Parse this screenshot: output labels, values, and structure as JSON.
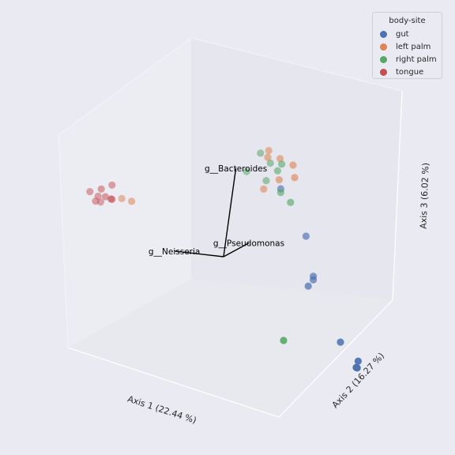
{
  "chart_data": {
    "type": "scatter",
    "projection": "3d",
    "axes": {
      "x": "Axis 1 (22.44 %)",
      "y": "Axis 2 (16.27 %)",
      "z": "Axis 3 (6.02 %)"
    },
    "grid": false,
    "legend": {
      "title": "body-site",
      "placement": "top-right",
      "entries": [
        {
          "label": "gut",
          "color": "#4c72b0"
        },
        {
          "label": "left palm",
          "color": "#dd8452"
        },
        {
          "label": "right palm",
          "color": "#55a868"
        },
        {
          "label": "tongue",
          "color": "#c44e52"
        }
      ]
    },
    "series": [
      {
        "name": "gut",
        "points": [
          {
            "x": 0.12,
            "y": 0.05,
            "z": 0.23
          },
          {
            "x": 0.17,
            "y": 0.08,
            "z": 0.12
          },
          {
            "x": 0.18,
            "y": 0.1,
            "z": 0.02
          },
          {
            "x": 0.18,
            "y": 0.1,
            "z": 0.01
          },
          {
            "x": 0.16,
            "y": 0.12,
            "z": 0.0
          },
          {
            "x": 0.2,
            "y": 0.22,
            "z": -0.1
          },
          {
            "x": 0.22,
            "y": 0.28,
            "z": -0.12
          },
          {
            "x": 0.21,
            "y": 0.3,
            "z": -0.13
          },
          {
            "x": 0.2,
            "y": 0.32,
            "z": -0.12
          }
        ]
      },
      {
        "name": "left palm",
        "points": [
          {
            "x": 0.1,
            "y": 0.02,
            "z": 0.3
          },
          {
            "x": 0.11,
            "y": 0.0,
            "z": 0.31
          },
          {
            "x": 0.13,
            "y": 0.02,
            "z": 0.3
          },
          {
            "x": 0.12,
            "y": 0.04,
            "z": 0.25
          },
          {
            "x": 0.15,
            "y": 0.05,
            "z": 0.3
          },
          {
            "x": 0.15,
            "y": 0.06,
            "z": 0.27
          },
          {
            "x": 0.09,
            "y": 0.02,
            "z": 0.21
          },
          {
            "x": -0.24,
            "y": -0.02,
            "z": 0.12
          },
          {
            "x": -0.22,
            "y": -0.01,
            "z": 0.12
          }
        ]
      },
      {
        "name": "right palm",
        "points": [
          {
            "x": 0.09,
            "y": 0.0,
            "z": 0.3
          },
          {
            "x": 0.11,
            "y": 0.01,
            "z": 0.28
          },
          {
            "x": 0.12,
            "y": 0.03,
            "z": 0.27
          },
          {
            "x": 0.13,
            "y": 0.03,
            "z": 0.29
          },
          {
            "x": 0.06,
            "y": -0.01,
            "z": 0.24
          },
          {
            "x": 0.1,
            "y": 0.01,
            "z": 0.23
          },
          {
            "x": 0.12,
            "y": 0.05,
            "z": 0.22
          },
          {
            "x": 0.14,
            "y": 0.06,
            "z": 0.2
          },
          {
            "x": 0.05,
            "y": 0.25,
            "z": -0.1
          }
        ]
      },
      {
        "name": "tongue",
        "points": [
          {
            "x": -0.26,
            "y": -0.03,
            "z": 0.11
          },
          {
            "x": -0.28,
            "y": -0.02,
            "z": 0.12
          },
          {
            "x": -0.29,
            "y": -0.04,
            "z": 0.11
          },
          {
            "x": -0.3,
            "y": -0.03,
            "z": 0.1
          },
          {
            "x": -0.27,
            "y": -0.01,
            "z": 0.12
          },
          {
            "x": -0.28,
            "y": -0.05,
            "z": 0.09
          },
          {
            "x": -0.29,
            "y": -0.02,
            "z": 0.14
          },
          {
            "x": -0.26,
            "y": -0.03,
            "z": 0.15
          },
          {
            "x": -0.31,
            "y": -0.04,
            "z": 0.12
          }
        ]
      }
    ],
    "biplot_vectors": [
      {
        "label": "g__Bacteroides",
        "x": 0.03,
        "y": 0.0,
        "z": 0.25
      },
      {
        "label": "g__Pseudomonas",
        "x": 0.05,
        "y": 0.03,
        "z": 0.06
      },
      {
        "label": "g__Neisseria",
        "x": -0.12,
        "y": 0.0,
        "z": 0.0
      }
    ]
  }
}
